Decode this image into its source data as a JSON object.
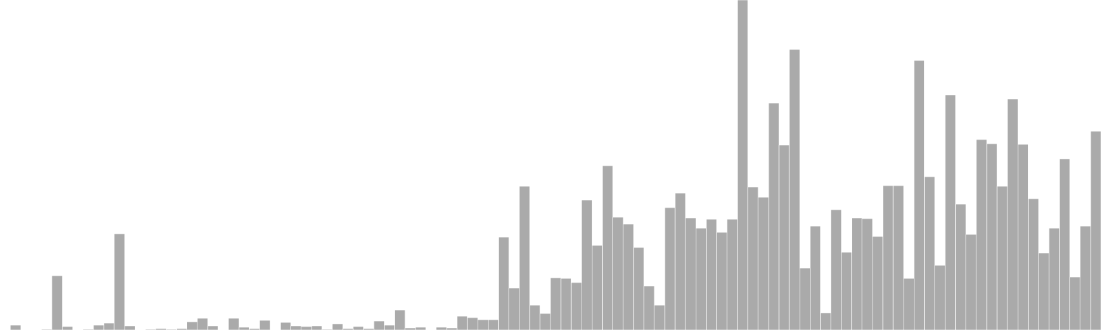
{
  "chart_data": {
    "type": "bar",
    "title": "",
    "xlabel": "",
    "ylabel": "",
    "grid": false,
    "legend": "none",
    "bar_color": "#aaaaaa",
    "ylim": [
      0,
      480
    ],
    "values": [
      0,
      7,
      0,
      0,
      1,
      79,
      5,
      0,
      1,
      7,
      10,
      140,
      6,
      0,
      1,
      2,
      1,
      2,
      12,
      17,
      6,
      0,
      17,
      4,
      2,
      14,
      0,
      11,
      6,
      5,
      6,
      1,
      9,
      2,
      5,
      2,
      13,
      7,
      29,
      3,
      4,
      0,
      4,
      3,
      20,
      18,
      15,
      15,
      135,
      61,
      209,
      36,
      24,
      76,
      75,
      69,
      189,
      123,
      239,
      164,
      154,
      120,
      64,
      36,
      178,
      199,
      163,
      148,
      161,
      142,
      161,
      480,
      208,
      193,
      330,
      269,
      408,
      90,
      151,
      25,
      175,
      113,
      163,
      162,
      136,
      210,
      210,
      75,
      392,
      223,
      94,
      342,
      183,
      139,
      277,
      271,
      209,
      336,
      270,
      191,
      112,
      148,
      249,
      77,
      151,
      289
    ]
  }
}
